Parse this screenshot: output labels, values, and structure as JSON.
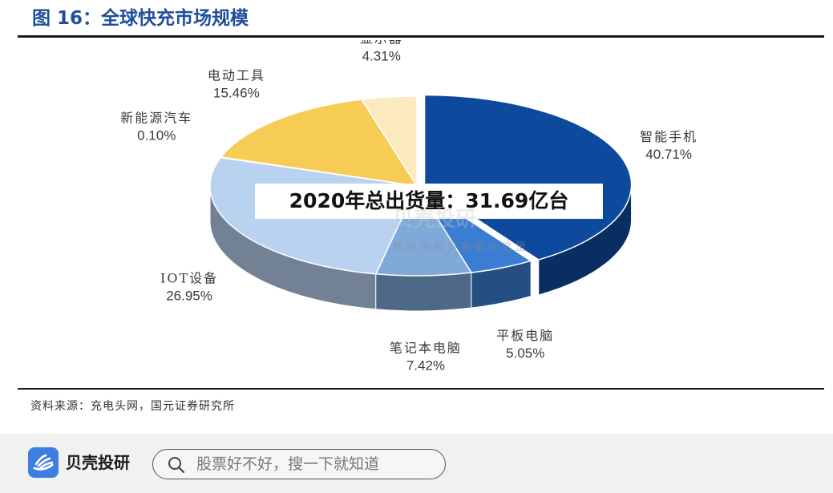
{
  "figure": {
    "title": "图 16：全球快充市场规模",
    "source": "资料来源：充电头网，国元证券研究所"
  },
  "colors": {
    "title_blue": "#1f4e9c",
    "accent_blue": "#3d7ee0"
  },
  "chart_data": {
    "type": "pie",
    "style": "3d-exploded",
    "annotation": "2020年总出货量：31.69亿台",
    "slices": [
      {
        "label": "智能手机",
        "value": 40.71,
        "value_text": "40.71%",
        "color": "#0d4a9e"
      },
      {
        "label": "平板电脑",
        "value": 5.05,
        "value_text": "5.05%",
        "color": "#3b7dd2"
      },
      {
        "label": "笔记本电脑",
        "value": 7.42,
        "value_text": "7.42%",
        "color": "#7ea9d9"
      },
      {
        "label": "IOT设备",
        "value": 26.95,
        "value_text": "26.95%",
        "color": "#b8d2ef"
      },
      {
        "label": "新能源汽车",
        "value": 0.1,
        "value_text": "0.10%",
        "color": "#c8dcf2"
      },
      {
        "label": "电动工具",
        "value": 15.46,
        "value_text": "15.46%",
        "color": "#f6cc55"
      },
      {
        "label": "显示器",
        "value": 4.31,
        "value_text": "4.31%",
        "color": "#fbe9bf"
      }
    ]
  },
  "watermark": {
    "brand_text": "贝壳投研",
    "slogan": "聪明的投资者都在这里"
  },
  "footer": {
    "brand": "贝壳投研",
    "search_placeholder": "股票好不好，搜一下就知道"
  }
}
